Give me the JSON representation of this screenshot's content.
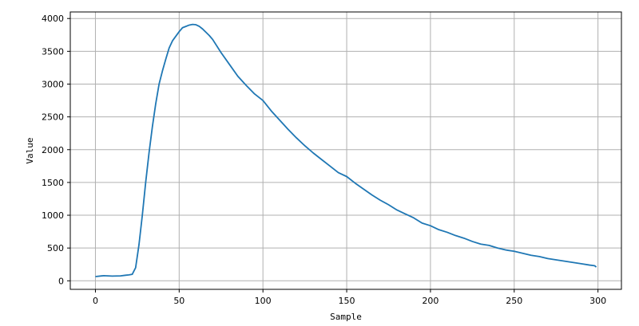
{
  "chart_data": {
    "type": "line",
    "title": "",
    "xlabel": "Sample",
    "ylabel": "Value",
    "xlim": [
      -15,
      314
    ],
    "ylim": [
      -130,
      4100
    ],
    "xticks": [
      0,
      50,
      100,
      150,
      200,
      250,
      300
    ],
    "yticks": [
      0,
      500,
      1000,
      1500,
      2000,
      2500,
      3000,
      3500,
      4000
    ],
    "grid": true,
    "line_color": "#1f77b4",
    "series": [
      {
        "x": [
          0,
          5,
          10,
          15,
          18,
          20,
          22,
          24,
          26,
          28,
          30,
          32,
          34,
          36,
          38,
          40,
          42,
          44,
          46,
          48,
          50,
          52,
          54,
          56,
          58,
          60,
          62,
          64,
          66,
          68,
          70,
          75,
          80,
          85,
          90,
          95,
          100,
          105,
          110,
          115,
          120,
          125,
          130,
          135,
          140,
          145,
          150,
          155,
          160,
          165,
          170,
          175,
          180,
          185,
          190,
          195,
          200,
          205,
          210,
          215,
          220,
          225,
          230,
          235,
          240,
          245,
          250,
          255,
          260,
          265,
          270,
          275,
          280,
          285,
          290,
          295,
          298,
          299
        ],
        "values": [
          65,
          78,
          72,
          75,
          85,
          90,
          100,
          200,
          550,
          1000,
          1500,
          1950,
          2350,
          2700,
          3000,
          3200,
          3380,
          3550,
          3660,
          3730,
          3800,
          3860,
          3880,
          3900,
          3910,
          3905,
          3880,
          3840,
          3790,
          3740,
          3680,
          3480,
          3300,
          3120,
          2980,
          2850,
          2750,
          2590,
          2450,
          2310,
          2180,
          2060,
          1950,
          1850,
          1750,
          1650,
          1590,
          1490,
          1400,
          1310,
          1230,
          1160,
          1080,
          1020,
          960,
          880,
          840,
          780,
          740,
          690,
          650,
          600,
          560,
          540,
          500,
          470,
          450,
          420,
          390,
          370,
          340,
          320,
          300,
          280,
          260,
          240,
          230,
          210
        ]
      }
    ]
  }
}
